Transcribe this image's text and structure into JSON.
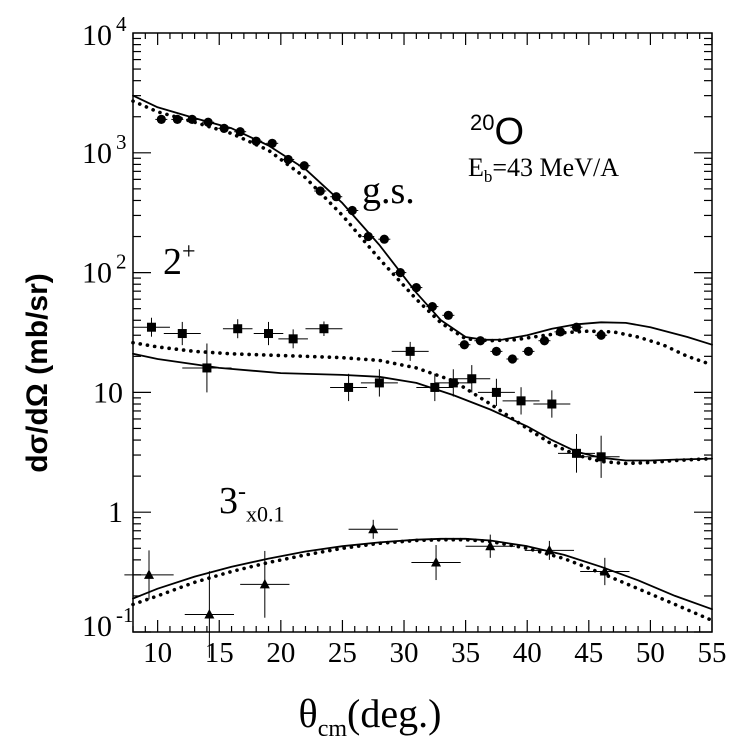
{
  "chart_data": {
    "type": "scatter",
    "x_axis": {
      "label_symbol": "θ",
      "label_sub": "cm",
      "label_rest": "(deg.)",
      "range": [
        8,
        55
      ],
      "ticks": [
        10,
        15,
        20,
        25,
        30,
        35,
        40,
        45,
        50,
        55
      ],
      "tick_labels": [
        "10",
        "15",
        "20",
        "25",
        "30",
        "35",
        "40",
        "45",
        "50",
        "55"
      ]
    },
    "y_axis": {
      "label": "dσ/dΩ (mb/sr)",
      "scale": "log",
      "range": [
        0.1,
        10000
      ],
      "ticks": [
        {
          "value": 10000,
          "base": "10",
          "exp": "4"
        },
        {
          "value": 1000,
          "base": "10",
          "exp": "3"
        },
        {
          "value": 100,
          "base": "10",
          "exp": "2"
        },
        {
          "value": 10,
          "base": "10",
          "exp": ""
        },
        {
          "value": 1,
          "base": "1",
          "exp": ""
        },
        {
          "value": 0.1,
          "base": "10",
          "exp": "-1"
        }
      ]
    },
    "annotations": {
      "nucleus_mass": "20",
      "nucleus_symbol": "O",
      "beam_prefix": "E",
      "beam_sub": "b",
      "beam_rest": "=43 MeV/A",
      "gs": "g.s.",
      "two_plus_base": "2",
      "two_plus_sup": "+",
      "three_minus_base": "3",
      "three_minus_sup": "-",
      "three_minus_sub": "x0.1"
    },
    "series": [
      {
        "marker": "circle",
        "x": [
          10.3,
          11.6,
          12.8,
          14.1,
          15.4,
          16.7,
          18.0,
          19.3,
          20.6,
          21.9,
          23.2,
          24.5,
          25.8,
          27.1,
          28.4,
          29.7,
          31.0,
          32.3,
          33.6,
          34.9,
          36.2,
          37.5,
          38.8,
          40.1,
          41.4,
          42.7,
          44.0,
          46.0
        ],
        "y": [
          1900,
          1900,
          1900,
          1800,
          1600,
          1500,
          1250,
          1200,
          880,
          780,
          480,
          430,
          330,
          200,
          190,
          100,
          75,
          52,
          44,
          25,
          27,
          22,
          19,
          22,
          27,
          32,
          35,
          30
        ]
      },
      {
        "marker": "square",
        "x": [
          9.5,
          12.0,
          14.0,
          16.5,
          19.0,
          21.0,
          23.5,
          25.5,
          28.0,
          30.5,
          32.5,
          34.0,
          35.5,
          37.5,
          39.5,
          42.0,
          44.0,
          46.0
        ],
        "y": [
          35,
          31,
          16,
          34,
          31,
          28,
          34,
          11,
          12,
          22,
          11,
          12,
          13,
          10,
          8.5,
          8.0,
          3.1,
          2.9
        ],
        "x_err": [
          1.5,
          1.5,
          2.0,
          1.2,
          1.2,
          1.2,
          1.5,
          1.5,
          1.5,
          1.5,
          1.5,
          1.5,
          1.5,
          1.5,
          1.5,
          1.5,
          1.5,
          1.5
        ],
        "y_err_factor": [
          1.2,
          1.25,
          1.6,
          1.2,
          1.25,
          1.2,
          1.15,
          1.3,
          1.3,
          1.2,
          1.3,
          1.3,
          1.3,
          1.3,
          1.3,
          1.3,
          1.45,
          1.5
        ]
      },
      {
        "marker": "triangle",
        "x": [
          9.3,
          14.2,
          18.7,
          27.5,
          32.6,
          37.0,
          41.8,
          46.3
        ],
        "y": [
          0.3,
          0.14,
          0.25,
          0.72,
          0.38,
          0.52,
          0.48,
          0.32
        ],
        "x_err": [
          2.0,
          2.0,
          2.0,
          2.0,
          2.0,
          2.0,
          2.0,
          2.0
        ],
        "y_err_factor": [
          1.6,
          2.3,
          1.9,
          1.2,
          1.4,
          1.25,
          1.2,
          1.3
        ]
      }
    ],
    "curves": [
      {
        "style": "solid",
        "x": [
          8,
          10,
          13,
          16,
          19,
          22,
          25,
          28,
          31,
          33,
          35,
          36.5,
          38,
          40,
          42,
          44,
          46,
          48,
          50,
          53,
          55
        ],
        "y": [
          3000,
          2400,
          1950,
          1600,
          1150,
          730,
          380,
          170,
          68,
          40,
          29,
          27.5,
          27.6,
          30,
          34,
          37,
          38.5,
          38,
          35,
          29,
          25
        ]
      },
      {
        "style": "dotted",
        "x": [
          8,
          10,
          13,
          16,
          19,
          22,
          25,
          28,
          31,
          33,
          35,
          37,
          39,
          41,
          43,
          45,
          47,
          49,
          51,
          53,
          55
        ],
        "y": [
          2700,
          2200,
          1800,
          1450,
          1050,
          620,
          300,
          130,
          60,
          38,
          28,
          27,
          27.5,
          29.5,
          31.5,
          32.5,
          32,
          29,
          25,
          20,
          17
        ]
      },
      {
        "style": "solid",
        "x": [
          8,
          10,
          15,
          20,
          25,
          28,
          31,
          34,
          37,
          40,
          42,
          44,
          46,
          48,
          50,
          52,
          55
        ],
        "y": [
          21,
          19,
          16,
          14.5,
          14,
          13.5,
          12,
          9.5,
          7.2,
          5.2,
          4.0,
          3.2,
          2.85,
          2.7,
          2.7,
          2.75,
          2.8
        ]
      },
      {
        "style": "dotted",
        "x": [
          8,
          10,
          13,
          16,
          19,
          22,
          25,
          28,
          31,
          34,
          37,
          40,
          42,
          44,
          46,
          48,
          50,
          52,
          55
        ],
        "y": [
          26,
          24,
          22,
          21,
          20.5,
          20,
          19.5,
          18.5,
          16,
          12.5,
          8,
          5.0,
          3.7,
          3.0,
          2.65,
          2.55,
          2.6,
          2.7,
          2.8
        ]
      },
      {
        "style": "solid",
        "x": [
          8,
          10,
          13,
          16,
          19,
          22,
          25,
          28,
          31,
          33,
          35,
          37,
          40,
          43,
          46,
          49,
          52,
          55
        ],
        "y": [
          0.19,
          0.23,
          0.29,
          0.35,
          0.41,
          0.47,
          0.52,
          0.56,
          0.59,
          0.6,
          0.6,
          0.58,
          0.52,
          0.44,
          0.35,
          0.27,
          0.2,
          0.155
        ]
      },
      {
        "style": "dotted",
        "x": [
          8,
          10,
          13,
          16,
          19,
          22,
          25,
          28,
          31,
          33,
          35,
          37,
          40,
          43,
          46,
          49,
          52,
          55
        ],
        "y": [
          0.17,
          0.2,
          0.26,
          0.32,
          0.38,
          0.44,
          0.5,
          0.55,
          0.58,
          0.59,
          0.59,
          0.57,
          0.5,
          0.41,
          0.31,
          0.23,
          0.17,
          0.125
        ]
      }
    ]
  }
}
